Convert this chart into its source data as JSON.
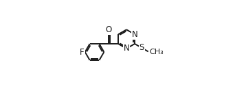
{
  "background_color": "#ffffff",
  "line_color": "#1a1a1a",
  "line_width": 1.4,
  "font_size": 8.5,
  "figsize": [
    3.58,
    1.52
  ],
  "dpi": 100,
  "xlim": [
    -0.05,
    1.05
  ],
  "ylim": [
    -0.05,
    1.05
  ]
}
